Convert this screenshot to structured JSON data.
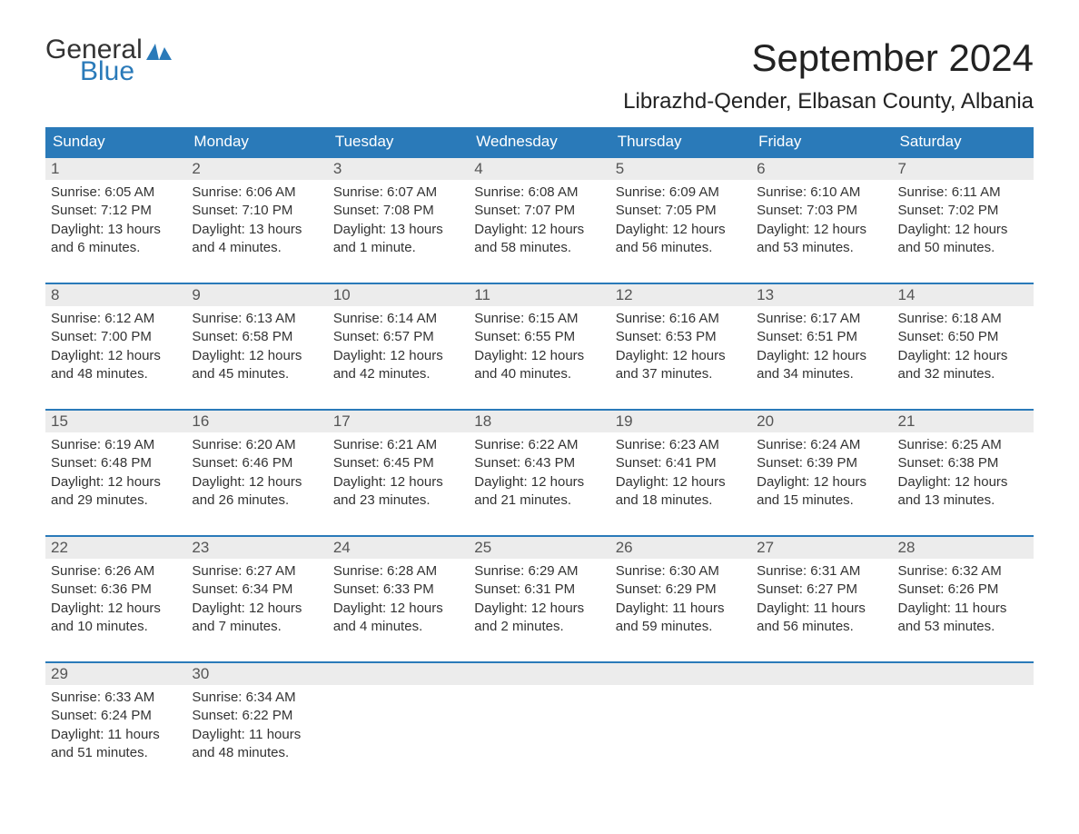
{
  "brand": {
    "word1": "General",
    "word2": "Blue",
    "icon_color": "#2a7ab9"
  },
  "title": "September 2024",
  "location": "Librazhd-Qender, Elbasan County, Albania",
  "colors": {
    "header_bg": "#2a7ab9",
    "header_text": "#ffffff",
    "daynum_bg": "#ececec",
    "daynum_border": "#2a7ab9",
    "body_text": "#333333"
  },
  "weekdays": [
    "Sunday",
    "Monday",
    "Tuesday",
    "Wednesday",
    "Thursday",
    "Friday",
    "Saturday"
  ],
  "weeks": [
    [
      {
        "n": "1",
        "sr": "Sunrise: 6:05 AM",
        "ss": "Sunset: 7:12 PM",
        "d1": "Daylight: 13 hours",
        "d2": "and 6 minutes."
      },
      {
        "n": "2",
        "sr": "Sunrise: 6:06 AM",
        "ss": "Sunset: 7:10 PM",
        "d1": "Daylight: 13 hours",
        "d2": "and 4 minutes."
      },
      {
        "n": "3",
        "sr": "Sunrise: 6:07 AM",
        "ss": "Sunset: 7:08 PM",
        "d1": "Daylight: 13 hours",
        "d2": "and 1 minute."
      },
      {
        "n": "4",
        "sr": "Sunrise: 6:08 AM",
        "ss": "Sunset: 7:07 PM",
        "d1": "Daylight: 12 hours",
        "d2": "and 58 minutes."
      },
      {
        "n": "5",
        "sr": "Sunrise: 6:09 AM",
        "ss": "Sunset: 7:05 PM",
        "d1": "Daylight: 12 hours",
        "d2": "and 56 minutes."
      },
      {
        "n": "6",
        "sr": "Sunrise: 6:10 AM",
        "ss": "Sunset: 7:03 PM",
        "d1": "Daylight: 12 hours",
        "d2": "and 53 minutes."
      },
      {
        "n": "7",
        "sr": "Sunrise: 6:11 AM",
        "ss": "Sunset: 7:02 PM",
        "d1": "Daylight: 12 hours",
        "d2": "and 50 minutes."
      }
    ],
    [
      {
        "n": "8",
        "sr": "Sunrise: 6:12 AM",
        "ss": "Sunset: 7:00 PM",
        "d1": "Daylight: 12 hours",
        "d2": "and 48 minutes."
      },
      {
        "n": "9",
        "sr": "Sunrise: 6:13 AM",
        "ss": "Sunset: 6:58 PM",
        "d1": "Daylight: 12 hours",
        "d2": "and 45 minutes."
      },
      {
        "n": "10",
        "sr": "Sunrise: 6:14 AM",
        "ss": "Sunset: 6:57 PM",
        "d1": "Daylight: 12 hours",
        "d2": "and 42 minutes."
      },
      {
        "n": "11",
        "sr": "Sunrise: 6:15 AM",
        "ss": "Sunset: 6:55 PM",
        "d1": "Daylight: 12 hours",
        "d2": "and 40 minutes."
      },
      {
        "n": "12",
        "sr": "Sunrise: 6:16 AM",
        "ss": "Sunset: 6:53 PM",
        "d1": "Daylight: 12 hours",
        "d2": "and 37 minutes."
      },
      {
        "n": "13",
        "sr": "Sunrise: 6:17 AM",
        "ss": "Sunset: 6:51 PM",
        "d1": "Daylight: 12 hours",
        "d2": "and 34 minutes."
      },
      {
        "n": "14",
        "sr": "Sunrise: 6:18 AM",
        "ss": "Sunset: 6:50 PM",
        "d1": "Daylight: 12 hours",
        "d2": "and 32 minutes."
      }
    ],
    [
      {
        "n": "15",
        "sr": "Sunrise: 6:19 AM",
        "ss": "Sunset: 6:48 PM",
        "d1": "Daylight: 12 hours",
        "d2": "and 29 minutes."
      },
      {
        "n": "16",
        "sr": "Sunrise: 6:20 AM",
        "ss": "Sunset: 6:46 PM",
        "d1": "Daylight: 12 hours",
        "d2": "and 26 minutes."
      },
      {
        "n": "17",
        "sr": "Sunrise: 6:21 AM",
        "ss": "Sunset: 6:45 PM",
        "d1": "Daylight: 12 hours",
        "d2": "and 23 minutes."
      },
      {
        "n": "18",
        "sr": "Sunrise: 6:22 AM",
        "ss": "Sunset: 6:43 PM",
        "d1": "Daylight: 12 hours",
        "d2": "and 21 minutes."
      },
      {
        "n": "19",
        "sr": "Sunrise: 6:23 AM",
        "ss": "Sunset: 6:41 PM",
        "d1": "Daylight: 12 hours",
        "d2": "and 18 minutes."
      },
      {
        "n": "20",
        "sr": "Sunrise: 6:24 AM",
        "ss": "Sunset: 6:39 PM",
        "d1": "Daylight: 12 hours",
        "d2": "and 15 minutes."
      },
      {
        "n": "21",
        "sr": "Sunrise: 6:25 AM",
        "ss": "Sunset: 6:38 PM",
        "d1": "Daylight: 12 hours",
        "d2": "and 13 minutes."
      }
    ],
    [
      {
        "n": "22",
        "sr": "Sunrise: 6:26 AM",
        "ss": "Sunset: 6:36 PM",
        "d1": "Daylight: 12 hours",
        "d2": "and 10 minutes."
      },
      {
        "n": "23",
        "sr": "Sunrise: 6:27 AM",
        "ss": "Sunset: 6:34 PM",
        "d1": "Daylight: 12 hours",
        "d2": "and 7 minutes."
      },
      {
        "n": "24",
        "sr": "Sunrise: 6:28 AM",
        "ss": "Sunset: 6:33 PM",
        "d1": "Daylight: 12 hours",
        "d2": "and 4 minutes."
      },
      {
        "n": "25",
        "sr": "Sunrise: 6:29 AM",
        "ss": "Sunset: 6:31 PM",
        "d1": "Daylight: 12 hours",
        "d2": "and 2 minutes."
      },
      {
        "n": "26",
        "sr": "Sunrise: 6:30 AM",
        "ss": "Sunset: 6:29 PM",
        "d1": "Daylight: 11 hours",
        "d2": "and 59 minutes."
      },
      {
        "n": "27",
        "sr": "Sunrise: 6:31 AM",
        "ss": "Sunset: 6:27 PM",
        "d1": "Daylight: 11 hours",
        "d2": "and 56 minutes."
      },
      {
        "n": "28",
        "sr": "Sunrise: 6:32 AM",
        "ss": "Sunset: 6:26 PM",
        "d1": "Daylight: 11 hours",
        "d2": "and 53 minutes."
      }
    ],
    [
      {
        "n": "29",
        "sr": "Sunrise: 6:33 AM",
        "ss": "Sunset: 6:24 PM",
        "d1": "Daylight: 11 hours",
        "d2": "and 51 minutes."
      },
      {
        "n": "30",
        "sr": "Sunrise: 6:34 AM",
        "ss": "Sunset: 6:22 PM",
        "d1": "Daylight: 11 hours",
        "d2": "and 48 minutes."
      },
      null,
      null,
      null,
      null,
      null
    ]
  ]
}
